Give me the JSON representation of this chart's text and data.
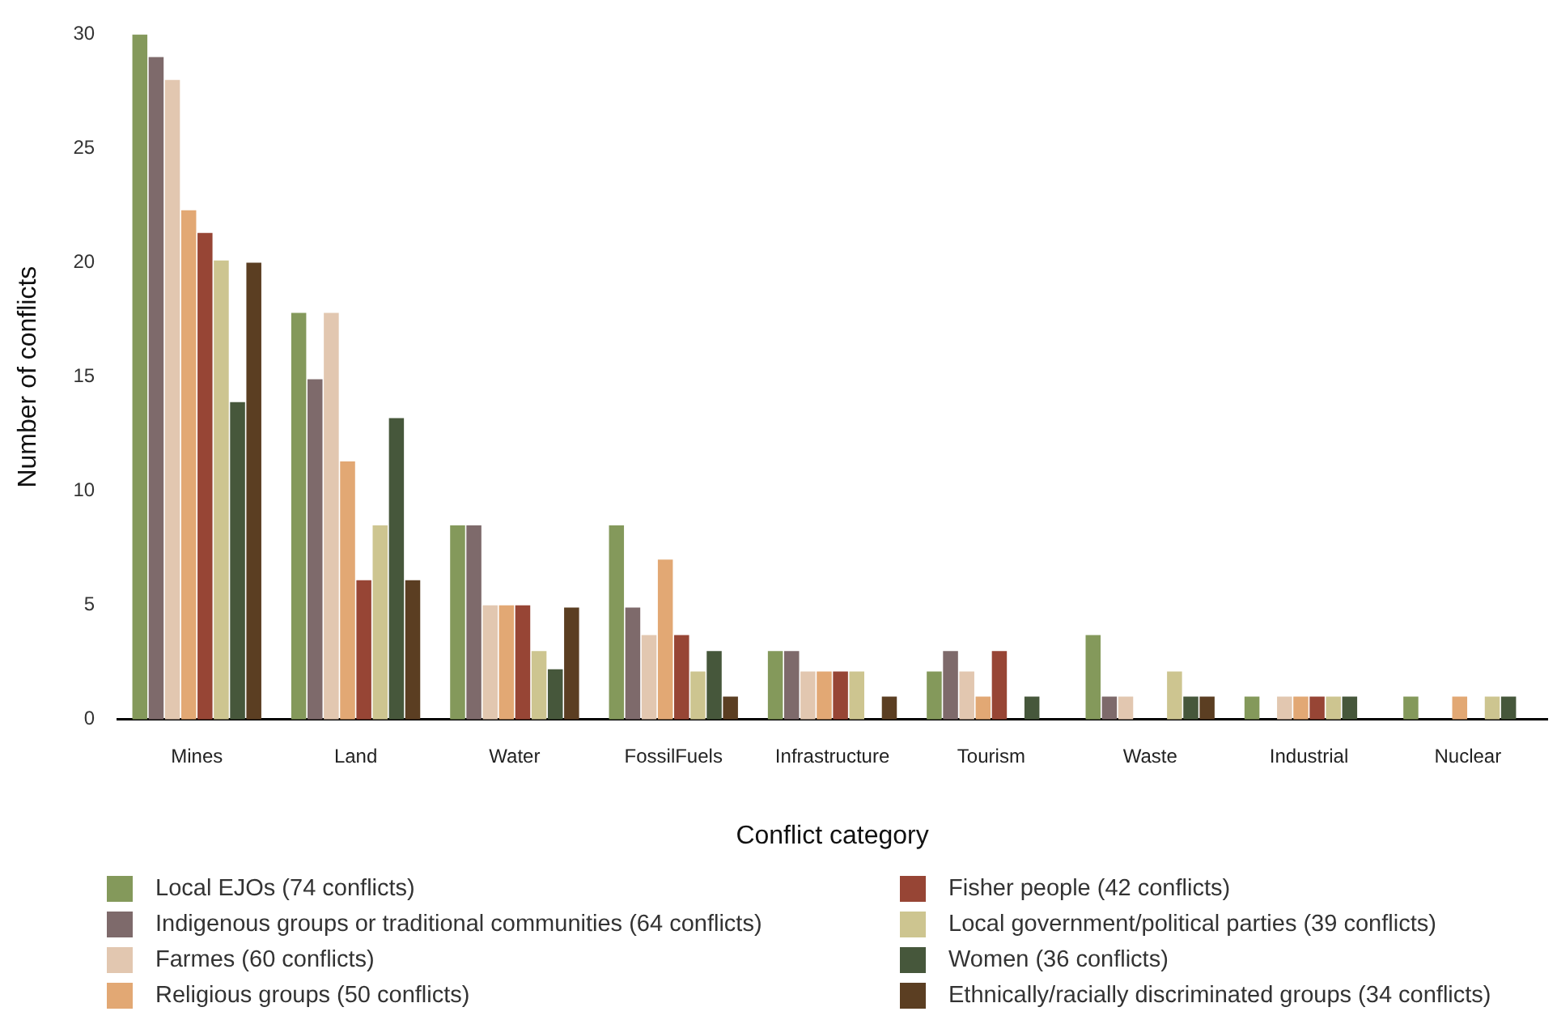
{
  "chart_data": {
    "type": "bar",
    "xlabel": "Conflict category",
    "ylabel": "Number of conflicts",
    "categories": [
      "Mines",
      "Land",
      "Water",
      "FossilFuels",
      "Infrastructure",
      "Tourism",
      "Waste",
      "Industrial",
      "Nuclear"
    ],
    "series": [
      {
        "name": "Local EJOs (74 conflicts)",
        "color": "#84995b",
        "values": [
          30,
          17.8,
          8.5,
          8.5,
          3.0,
          2.1,
          3.7,
          1.0,
          1.0
        ]
      },
      {
        "name": "Indigenous groups or traditional communities (64 conflicts)",
        "color": "#7e6a6b",
        "values": [
          29,
          14.9,
          8.5,
          4.9,
          3.0,
          3.0,
          1.0,
          null,
          null
        ]
      },
      {
        "name": "Farmes (60 conflicts)",
        "color": "#e2c7b0",
        "values": [
          28,
          17.8,
          5.0,
          3.7,
          2.1,
          2.1,
          1.0,
          1.0,
          null
        ]
      },
      {
        "name": "Religious groups (50 conflicts)",
        "color": "#e2a874",
        "values": [
          22.3,
          11.3,
          5.0,
          7.0,
          2.1,
          1.0,
          null,
          1.0,
          1.0
        ]
      },
      {
        "name": "Fisher people (42 conflicts)",
        "color": "#974535",
        "values": [
          21.3,
          6.1,
          5.0,
          3.7,
          2.1,
          3.0,
          null,
          1.0,
          null
        ]
      },
      {
        "name": "Local government/political parties (39 conflicts)",
        "color": "#cdc590",
        "values": [
          20.1,
          8.5,
          3.0,
          2.1,
          2.1,
          null,
          2.1,
          1.0,
          1.0
        ]
      },
      {
        "name": "Women (36 conflicts)",
        "color": "#46573b",
        "values": [
          13.9,
          13.2,
          2.2,
          3.0,
          null,
          1.0,
          1.0,
          1.0,
          1.0
        ]
      },
      {
        "name": "Ethnically/racially discriminated groups (34 conflicts)",
        "color": "#5b3e22",
        "values": [
          20.0,
          6.1,
          4.9,
          1.0,
          1.0,
          null,
          1.0,
          null,
          null
        ]
      }
    ],
    "ylim": [
      0,
      30
    ],
    "yticks": [
      0,
      5,
      10,
      15,
      20,
      25,
      30
    ],
    "grid": false,
    "legend": "bottom"
  }
}
